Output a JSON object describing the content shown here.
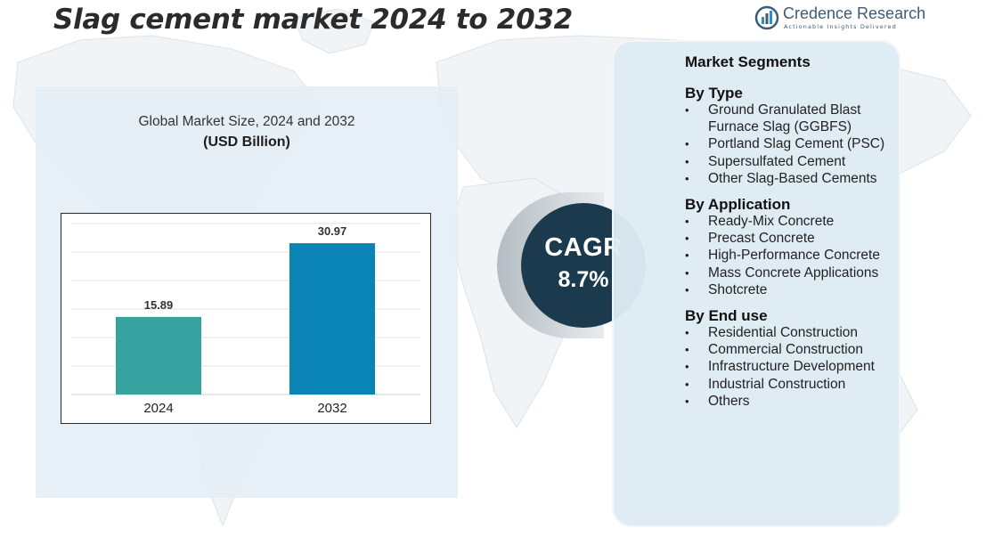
{
  "title": "Slag cement market 2024  to 2032",
  "logo": {
    "name": "Credence Research",
    "tagline": "Actionable Insights Delivered"
  },
  "colors": {
    "bar_2024": "#36a3a0",
    "bar_2032": "#0a83b5",
    "cagr_circle": "#1b3a4e",
    "panel": "#dfebf4"
  },
  "chart_data": {
    "type": "bar",
    "title": "Global Market Size, 2024 and 2032",
    "subtitle": "(USD Billion)",
    "categories": [
      "2024",
      "2032"
    ],
    "values": [
      15.89,
      30.97
    ],
    "data_labels": [
      "15.89",
      "30.97"
    ],
    "ylim": [
      0,
      35
    ],
    "grid": true,
    "legend": "none"
  },
  "cagr": {
    "label": "CAGR",
    "value": "8.7%"
  },
  "segments": {
    "title": "Market Segments",
    "groups": [
      {
        "title": "By Type",
        "items": [
          "Ground Granulated Blast Furnace Slag (GGBFS)",
          "Portland Slag Cement (PSC)",
          "Supersulfated Cement",
          "Other Slag-Based Cements"
        ]
      },
      {
        "title": "By Application",
        "items": [
          "Ready-Mix Concrete",
          "Precast Concrete",
          "High-Performance Concrete",
          "Mass Concrete Applications",
          "Shotcrete"
        ]
      },
      {
        "title": "By End use",
        "items": [
          "Residential Construction",
          "Commercial Construction",
          "Infrastructure Development",
          "Industrial Construction",
          "Others"
        ]
      }
    ]
  }
}
